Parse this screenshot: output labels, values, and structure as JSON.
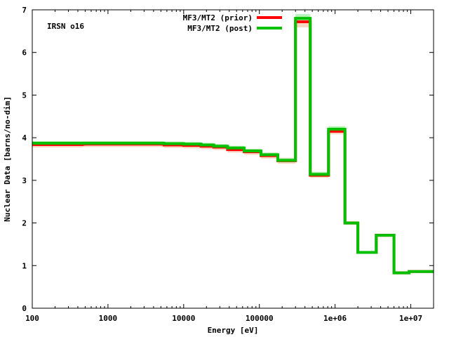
{
  "chart_data": {
    "type": "line",
    "title": "",
    "annotation": "IRSN o16",
    "xlabel": "Energy [eV]",
    "ylabel": "Nuclear Data [barns/no-dim]",
    "xscale": "log",
    "xlim": [
      100,
      20000000
    ],
    "ylim": [
      0,
      7
    ],
    "x_ticks": [
      100,
      1000,
      10000,
      100000,
      1000000,
      10000000
    ],
    "x_tick_labels": [
      "100",
      "1000",
      "10000",
      "100000",
      "1e+06",
      "1e+07"
    ],
    "y_ticks": [
      0,
      1,
      2,
      3,
      4,
      5,
      6,
      7
    ],
    "y_tick_labels": [
      "0",
      "1",
      "2",
      "3",
      "4",
      "5",
      "6",
      "7"
    ],
    "grid": false,
    "legend_position": "top-right",
    "colors": {
      "prior": "#ff0000",
      "post": "#00c000",
      "prior_band": "#f3c9b0",
      "post_band": "#a6f0a6"
    },
    "series": [
      {
        "name": "MF3/MT2 (prior)",
        "style": "step",
        "edges": [
          100,
          460,
          5500,
          10000,
          17000,
          25000,
          38000,
          63000,
          105000,
          175000,
          300000,
          470000,
          820000,
          1350000,
          2000000,
          3500000,
          6000000,
          9500000,
          20000000
        ],
        "values": [
          3.84,
          3.85,
          3.83,
          3.82,
          3.8,
          3.78,
          3.72,
          3.67,
          3.58,
          3.46,
          6.72,
          3.12,
          4.15,
          2.0,
          1.31,
          1.71,
          0.83,
          0.86
        ],
        "band": [
          0.07,
          0.07,
          0.07,
          0.07,
          0.07,
          0.07,
          0.07,
          0.07,
          0.07,
          0.07,
          0.13,
          0.06,
          0.07,
          0.04,
          0.03,
          0.03,
          0.02,
          0.02
        ]
      },
      {
        "name": "MF3/MT2 (post)",
        "style": "step",
        "edges": [
          100,
          460,
          5500,
          10000,
          17000,
          25000,
          38000,
          63000,
          105000,
          175000,
          300000,
          470000,
          820000,
          1350000,
          2000000,
          3500000,
          6000000,
          9500000,
          20000000
        ],
        "values": [
          3.87,
          3.87,
          3.86,
          3.85,
          3.83,
          3.8,
          3.76,
          3.69,
          3.6,
          3.47,
          6.8,
          3.14,
          4.2,
          2.0,
          1.31,
          1.71,
          0.83,
          0.86
        ],
        "band": [
          0.05,
          0.05,
          0.05,
          0.05,
          0.05,
          0.05,
          0.05,
          0.05,
          0.05,
          0.05,
          0.1,
          0.06,
          0.07,
          0.03,
          0.03,
          0.03,
          0.02,
          0.02
        ]
      }
    ]
  }
}
